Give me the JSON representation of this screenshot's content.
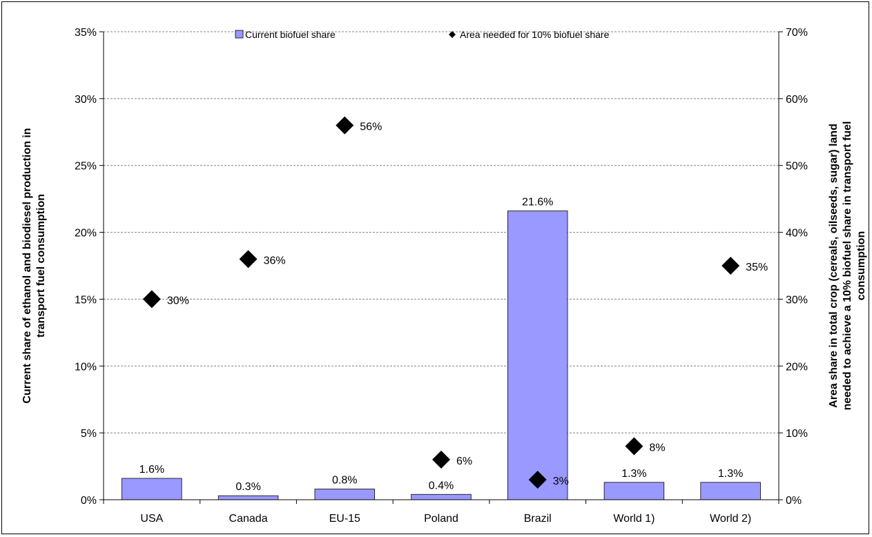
{
  "chart_data": {
    "type": "bar",
    "categories": [
      "USA",
      "Canada",
      "EU-15",
      "Poland",
      "Brazil",
      "World 1)",
      "World 2)"
    ],
    "series": [
      {
        "name": "Current biofuel share",
        "kind": "bar",
        "axis": "left",
        "values": [
          1.6,
          0.3,
          0.8,
          0.4,
          21.6,
          1.3,
          1.3
        ],
        "labels": [
          "1.6%",
          "0.3%",
          "0.8%",
          "0.4%",
          "21.6%",
          "1.3%",
          "1.3%"
        ],
        "color": "#9999ff"
      },
      {
        "name": "Area needed for 10% biofuel share",
        "kind": "marker",
        "axis": "right",
        "values": [
          30,
          36,
          56,
          6,
          3,
          8,
          35
        ],
        "labels": [
          "30%",
          "36%",
          "56%",
          "6%",
          "3%",
          "8%",
          "35%"
        ],
        "color": "#000000"
      }
    ],
    "ylabel": "Current share of ethanol and biodiesel production in transport fuel consumption",
    "ylabel_lines": [
      "Current share of ethanol and biodiesel production in",
      "transport fuel consumption"
    ],
    "y2label": "Area share in total crop (cereals, oilseeds, sugar) land needed to achieve a 10% biofuel share in transport fuel consumption",
    "y2label_lines": [
      "Area share in total crop (cereals, oilseeds, sugar) land",
      "needed to achieve a 10% biofuel share in transport fuel",
      "consumption"
    ],
    "ylim": [
      0,
      35
    ],
    "y2lim": [
      0,
      70
    ],
    "yticks": [
      "0%",
      "5%",
      "10%",
      "15%",
      "20%",
      "25%",
      "30%",
      "35%"
    ],
    "y2ticks": [
      "0%",
      "10%",
      "20%",
      "30%",
      "40%",
      "50%",
      "60%",
      "70%"
    ],
    "grid": true,
    "legend_position": "top"
  }
}
